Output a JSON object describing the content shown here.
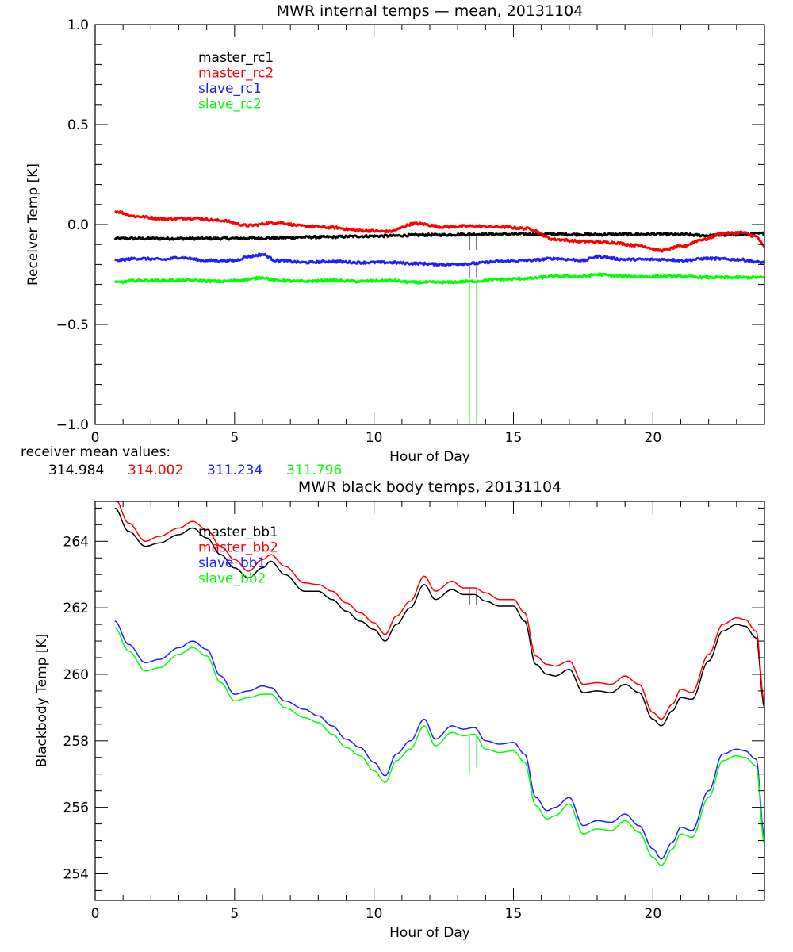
{
  "chart_data": [
    {
      "type": "line",
      "title": "MWR internal temps — mean, 20131104",
      "xlabel": "Hour of Day",
      "ylabel": "Receiver Temp [K]",
      "xlim": [
        0,
        24
      ],
      "ylim": [
        -1.0,
        1.0
      ],
      "xticks": [
        "0",
        "5",
        "10",
        "15",
        "20"
      ],
      "xtick_values": [
        0,
        5,
        10,
        15,
        20
      ],
      "x_minor_step": 1,
      "yticks": [
        "1.0",
        "0.5",
        "0.0",
        "-0.5",
        "-1.0"
      ],
      "ytick_values": [
        1.0,
        0.5,
        0.0,
        -0.5,
        -1.0
      ],
      "y_minor_step": 0.1,
      "grid": false,
      "legend_position": "top-left",
      "noise": 0.006,
      "series": [
        {
          "name": "master_rc1",
          "color": "#000000",
          "x": [
            0.7,
            2,
            4,
            6,
            8,
            10,
            12,
            14,
            16,
            18,
            20,
            21,
            22,
            23,
            24
          ],
          "values": [
            -0.07,
            -0.07,
            -0.07,
            -0.068,
            -0.063,
            -0.058,
            -0.052,
            -0.048,
            -0.048,
            -0.05,
            -0.048,
            -0.05,
            -0.055,
            -0.05,
            -0.045
          ],
          "spikes": [
            {
              "x": 13.42,
              "to": -0.127
            },
            {
              "x": 13.68,
              "to": -0.127
            }
          ]
        },
        {
          "name": "master_rc2",
          "color": "#ff0000",
          "x": [
            0.7,
            1.5,
            2.5,
            3.5,
            4.5,
            5.5,
            6.5,
            7.5,
            8.5,
            9.5,
            10.5,
            11.5,
            12.5,
            13.5,
            14.5,
            15.5,
            16.5,
            17.5,
            18.5,
            19.5,
            20.3,
            21,
            21.8,
            22.5,
            23.2,
            23.7,
            24
          ],
          "values": [
            0.065,
            0.04,
            0.028,
            0.032,
            0.02,
            -0.005,
            0.01,
            -0.008,
            -0.015,
            -0.03,
            -0.035,
            0.005,
            -0.012,
            -0.008,
            -0.012,
            -0.02,
            -0.075,
            -0.085,
            -0.09,
            -0.105,
            -0.13,
            -0.11,
            -0.075,
            -0.045,
            -0.04,
            -0.06,
            -0.11
          ]
        },
        {
          "name": "slave_rc1",
          "color": "#2020ff",
          "x": [
            0.7,
            1.5,
            2.5,
            3,
            4,
            5,
            5.5,
            6,
            6.5,
            7.5,
            8.5,
            9.5,
            10.5,
            11.5,
            12.5,
            13.5,
            14.5,
            15.5,
            16.5,
            17,
            17.5,
            18,
            19,
            20,
            20.5,
            21,
            22,
            23,
            24
          ],
          "values": [
            -0.18,
            -0.17,
            -0.175,
            -0.165,
            -0.18,
            -0.18,
            -0.16,
            -0.15,
            -0.18,
            -0.19,
            -0.185,
            -0.19,
            -0.19,
            -0.195,
            -0.2,
            -0.195,
            -0.185,
            -0.18,
            -0.17,
            -0.175,
            -0.18,
            -0.16,
            -0.175,
            -0.175,
            -0.175,
            -0.18,
            -0.17,
            -0.175,
            -0.19
          ],
          "spikes": [
            {
              "x": 13.42,
              "to": -0.27
            },
            {
              "x": 13.68,
              "to": -0.27
            }
          ]
        },
        {
          "name": "slave_rc2",
          "color": "#00ff00",
          "x": [
            0.7,
            1.5,
            2.5,
            3.5,
            4.5,
            5.5,
            6,
            6.5,
            7.5,
            8.5,
            9.5,
            10.5,
            11.5,
            12.5,
            13.5,
            14.5,
            15.5,
            16.5,
            17.5,
            18,
            19,
            20,
            21,
            22,
            23,
            24
          ],
          "values": [
            -0.29,
            -0.28,
            -0.28,
            -0.28,
            -0.285,
            -0.275,
            -0.265,
            -0.28,
            -0.285,
            -0.28,
            -0.285,
            -0.28,
            -0.29,
            -0.29,
            -0.285,
            -0.275,
            -0.27,
            -0.26,
            -0.26,
            -0.25,
            -0.26,
            -0.26,
            -0.26,
            -0.265,
            -0.265,
            -0.265
          ],
          "spikes": [
            {
              "x": 13.42,
              "to": -1.0
            },
            {
              "x": 13.68,
              "to": -1.0
            }
          ]
        }
      ]
    },
    {
      "type": "line",
      "title": "MWR black body temps, 20131104",
      "xlabel": "Hour of Day",
      "ylabel": "Blackbody Temp [K]",
      "xlim": [
        0,
        24
      ],
      "ylim": [
        253.2,
        265.2
      ],
      "xticks": [
        "0",
        "5",
        "10",
        "15",
        "20"
      ],
      "xtick_values": [
        0,
        5,
        10,
        15,
        20
      ],
      "x_minor_step": 1,
      "yticks": [
        "254",
        "256",
        "258",
        "260",
        "262",
        "264"
      ],
      "ytick_values": [
        254,
        256,
        258,
        260,
        262,
        264
      ],
      "y_minor_step": 0.5,
      "grid": false,
      "legend_position": "top-left",
      "noise": 0,
      "series": [
        {
          "name": "master_bb1",
          "color": "#000000",
          "x": [
            0.7,
            1.2,
            1.8,
            2.3,
            3.0,
            3.5,
            4.0,
            4.5,
            5.0,
            5.5,
            6.0,
            6.3,
            6.8,
            7.5,
            8.0,
            8.5,
            9.0,
            9.5,
            10.0,
            10.4,
            10.8,
            11.3,
            11.8,
            12.2,
            12.8,
            13.2,
            13.6,
            14.0,
            14.5,
            15.0,
            15.4,
            15.8,
            16.2,
            16.5,
            17.0,
            17.5,
            18.0,
            18.5,
            19.0,
            19.5,
            20.0,
            20.3,
            20.7,
            21.0,
            21.4,
            22.0,
            22.5,
            23.0,
            23.3,
            23.7,
            24.0
          ],
          "values": [
            265.0,
            264.3,
            263.85,
            263.95,
            264.2,
            264.4,
            264.1,
            263.6,
            263.2,
            262.9,
            263.2,
            263.4,
            263.0,
            262.5,
            262.5,
            262.25,
            261.9,
            261.6,
            261.35,
            261.0,
            261.5,
            262.0,
            262.7,
            262.25,
            262.55,
            262.4,
            262.4,
            262.2,
            262.05,
            262.05,
            261.6,
            260.3,
            260.0,
            259.95,
            260.15,
            259.45,
            259.5,
            259.45,
            259.7,
            259.45,
            258.65,
            258.45,
            258.9,
            259.3,
            259.25,
            260.4,
            261.3,
            261.5,
            261.45,
            261.1,
            259.0
          ],
          "spikes": [
            {
              "x": 13.42,
              "to": 262.1
            },
            {
              "x": 13.68,
              "to": 262.1
            }
          ]
        },
        {
          "name": "master_bb2",
          "color": "#ff0000",
          "x": [
            0.7,
            1.2,
            1.8,
            2.3,
            3.0,
            3.5,
            4.0,
            4.5,
            5.0,
            5.5,
            6.0,
            6.3,
            6.8,
            7.5,
            8.0,
            8.5,
            9.0,
            9.5,
            10.0,
            10.4,
            10.8,
            11.3,
            11.8,
            12.2,
            12.8,
            13.2,
            13.6,
            14.0,
            14.5,
            15.0,
            15.4,
            15.8,
            16.2,
            16.5,
            17.0,
            17.5,
            18.0,
            18.5,
            19.0,
            19.5,
            20.0,
            20.3,
            20.7,
            21.0,
            21.4,
            22.0,
            22.5,
            23.0,
            23.3,
            23.7,
            24.0
          ],
          "values": [
            265.3,
            264.55,
            264.0,
            264.15,
            264.4,
            264.6,
            264.35,
            263.85,
            263.45,
            263.1,
            263.45,
            263.6,
            263.25,
            262.75,
            262.7,
            262.5,
            262.15,
            261.85,
            261.55,
            261.2,
            261.75,
            262.2,
            262.95,
            262.5,
            262.8,
            262.6,
            262.6,
            262.45,
            262.25,
            262.25,
            261.85,
            260.55,
            260.3,
            260.25,
            260.4,
            259.7,
            259.75,
            259.7,
            259.95,
            259.7,
            258.85,
            258.65,
            259.1,
            259.55,
            259.45,
            260.6,
            261.5,
            261.7,
            261.65,
            261.3,
            259.15
          ],
          "spikes": [
            {
              "x": 13.42,
              "to": 262.4
            },
            {
              "x": 13.68,
              "to": 262.4
            }
          ]
        },
        {
          "name": "slave_bb1",
          "color": "#2020ff",
          "x": [
            0.7,
            1.2,
            1.8,
            2.3,
            3.0,
            3.5,
            4.0,
            4.5,
            5.0,
            5.5,
            6.0,
            6.3,
            6.8,
            7.5,
            8.0,
            8.5,
            9.0,
            9.5,
            10.0,
            10.4,
            10.8,
            11.3,
            11.8,
            12.2,
            12.8,
            13.2,
            13.6,
            14.0,
            14.5,
            15.0,
            15.4,
            15.8,
            16.2,
            16.5,
            17.0,
            17.5,
            18.0,
            18.5,
            19.0,
            19.5,
            20.0,
            20.3,
            20.7,
            21.0,
            21.4,
            22.0,
            22.5,
            23.0,
            23.3,
            23.7,
            24.0
          ],
          "values": [
            261.6,
            260.9,
            260.35,
            260.45,
            260.8,
            261.0,
            260.75,
            259.95,
            259.4,
            259.5,
            259.65,
            259.6,
            259.2,
            258.95,
            258.75,
            258.45,
            258.05,
            257.8,
            257.35,
            256.95,
            257.6,
            258.0,
            258.65,
            258.05,
            258.45,
            258.35,
            258.4,
            258.0,
            257.9,
            257.95,
            257.6,
            256.3,
            255.9,
            256.0,
            256.3,
            255.45,
            255.6,
            255.55,
            255.8,
            255.45,
            254.75,
            254.45,
            254.95,
            255.4,
            255.3,
            256.5,
            257.6,
            257.75,
            257.7,
            257.45,
            255.1
          ]
        },
        {
          "name": "slave_bb2",
          "color": "#00ff00",
          "x": [
            0.7,
            1.2,
            1.8,
            2.3,
            3.0,
            3.5,
            4.0,
            4.5,
            5.0,
            5.5,
            6.0,
            6.3,
            6.8,
            7.5,
            8.0,
            8.5,
            9.0,
            9.5,
            10.0,
            10.4,
            10.8,
            11.3,
            11.8,
            12.2,
            12.8,
            13.2,
            13.6,
            14.0,
            14.5,
            15.0,
            15.4,
            15.8,
            16.2,
            16.5,
            17.0,
            17.5,
            18.0,
            18.5,
            19.0,
            19.5,
            20.0,
            20.3,
            20.7,
            21.0,
            21.4,
            22.0,
            22.5,
            23.0,
            23.3,
            23.7,
            24.0
          ],
          "values": [
            261.4,
            260.7,
            260.1,
            260.2,
            260.6,
            260.8,
            260.55,
            259.75,
            259.2,
            259.3,
            259.4,
            259.4,
            259.0,
            258.7,
            258.55,
            258.2,
            257.8,
            257.55,
            257.1,
            256.75,
            257.4,
            257.75,
            258.45,
            257.85,
            258.25,
            258.15,
            258.2,
            257.75,
            257.65,
            257.7,
            257.35,
            256.05,
            255.65,
            255.75,
            256.1,
            255.2,
            255.35,
            255.3,
            255.6,
            255.25,
            254.5,
            254.25,
            254.75,
            255.2,
            255.1,
            256.3,
            257.4,
            257.55,
            257.5,
            257.25,
            254.9
          ],
          "spikes": [
            {
              "x": 13.42,
              "to": 257.0
            },
            {
              "x": 13.68,
              "to": 257.2
            }
          ]
        }
      ]
    }
  ],
  "receiver_means": {
    "label": "receiver mean values:",
    "values": [
      {
        "text": "314.984",
        "color": "#000000"
      },
      {
        "text": "314.002",
        "color": "#ff0000"
      },
      {
        "text": "311.234",
        "color": "#2020ff"
      },
      {
        "text": "311.796",
        "color": "#00ff00"
      }
    ]
  }
}
